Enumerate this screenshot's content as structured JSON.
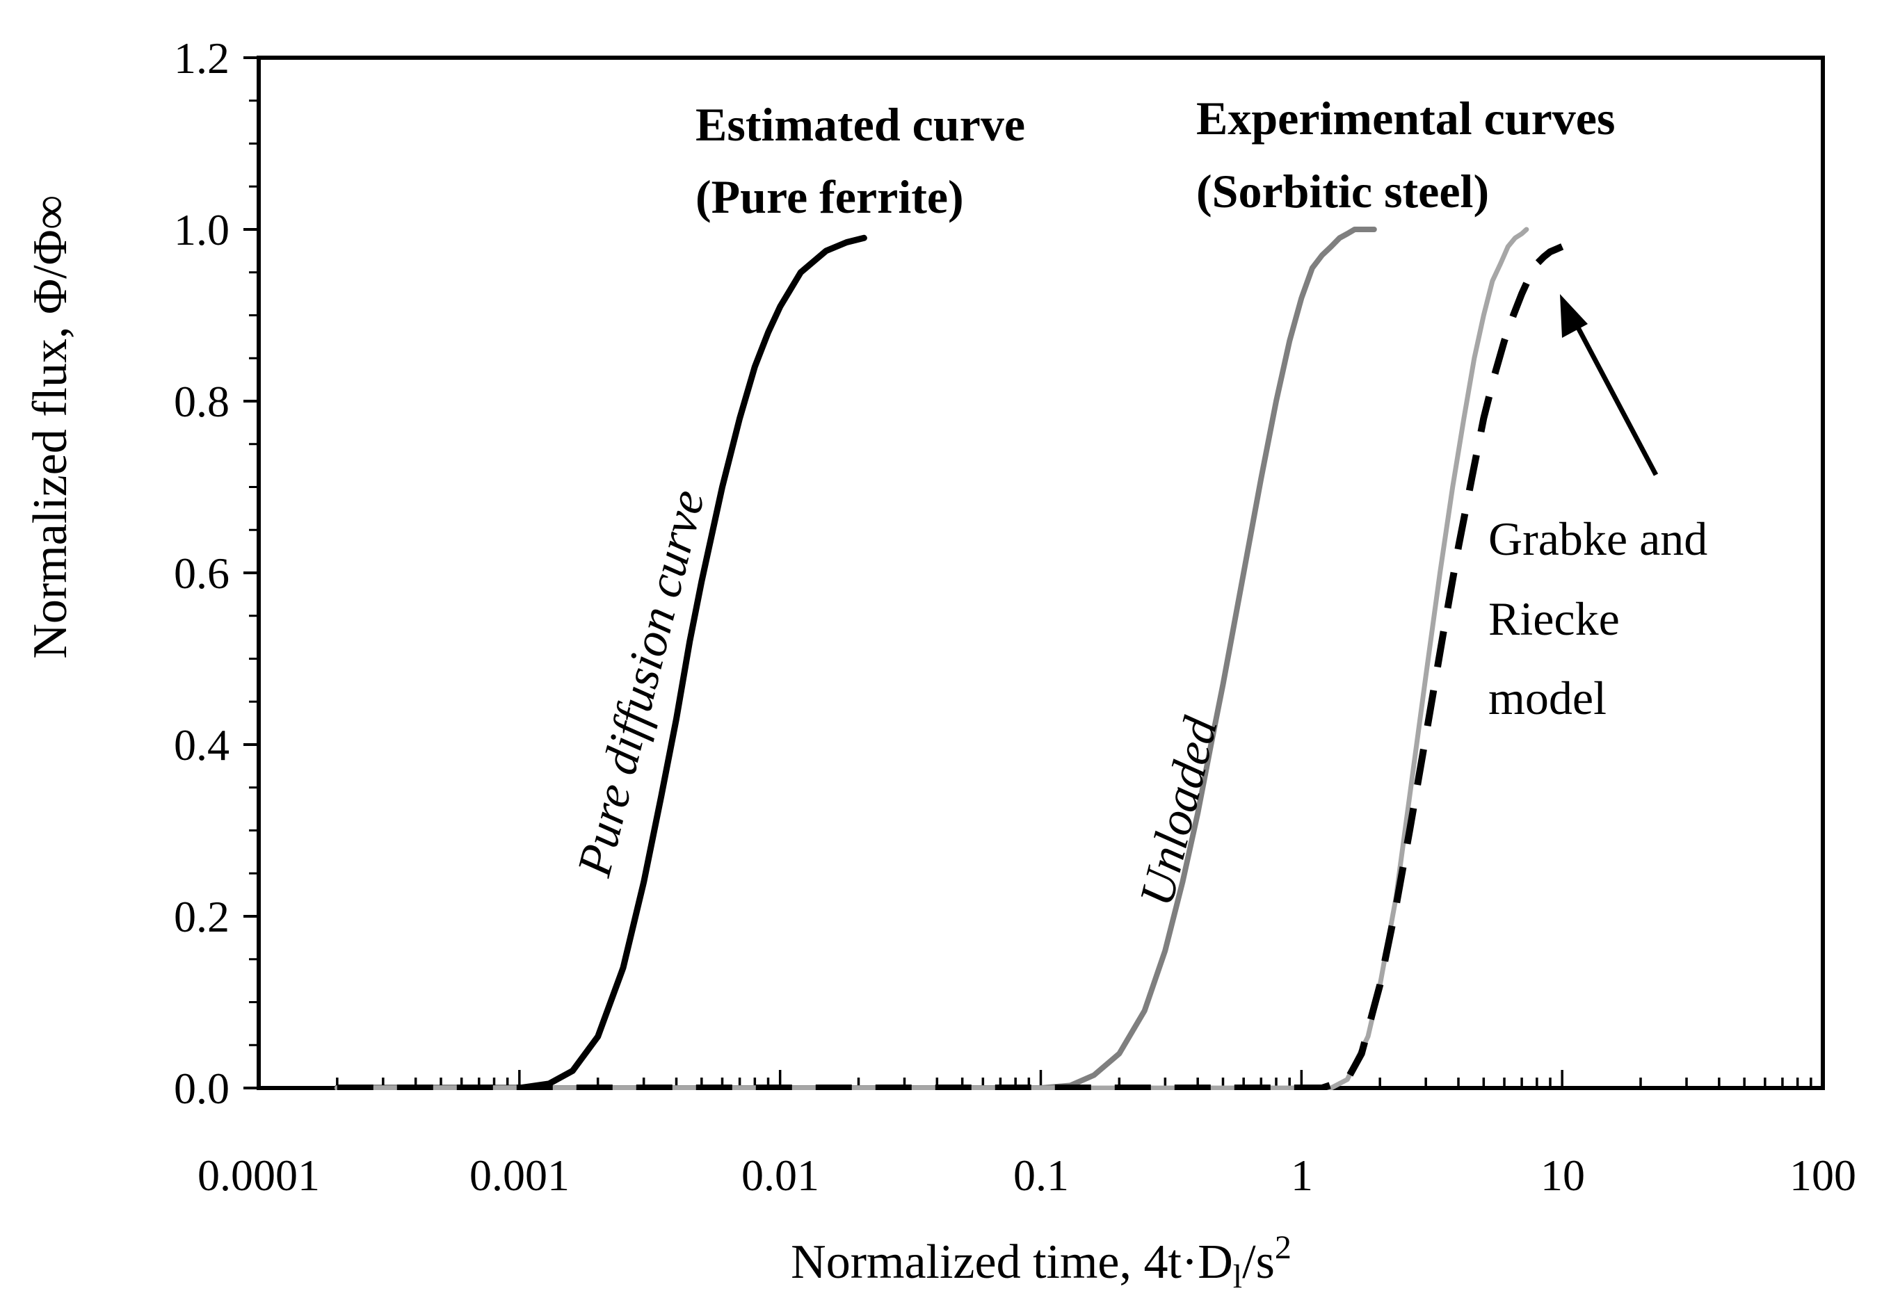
{
  "chart_data": {
    "type": "line",
    "xscale": "log",
    "xlim": [
      0.0001,
      100
    ],
    "ylim": [
      0,
      1.2
    ],
    "xticks": [
      "0.0001",
      "0.001",
      "0.01",
      "0.1",
      "1",
      "10",
      "100"
    ],
    "yticks": [
      "0.0",
      "0.2",
      "0.4",
      "0.6",
      "0.8",
      "1.0",
      "1.2"
    ],
    "xlabel": {
      "main": "Normalized time, 4t·D",
      "sub": "l",
      "tail": "/s",
      "sup": "2"
    },
    "ylabel": "Normalized flux, Φ/Φ∞",
    "series": [
      {
        "name": "Pure diffusion curve",
        "color": "#000000",
        "style": "solid",
        "x": [
          0.0002,
          0.001,
          0.0013,
          0.0016,
          0.002,
          0.0025,
          0.003,
          0.0035,
          0.004,
          0.0045,
          0.005,
          0.006,
          0.007,
          0.008,
          0.009,
          0.01,
          0.012,
          0.015,
          0.018,
          0.021
        ],
        "y": [
          0.0,
          0.0,
          0.005,
          0.02,
          0.06,
          0.14,
          0.24,
          0.34,
          0.43,
          0.52,
          0.59,
          0.7,
          0.78,
          0.84,
          0.88,
          0.91,
          0.95,
          0.975,
          0.985,
          0.99
        ]
      },
      {
        "name": "Unloaded",
        "color": "#7f7f7f",
        "style": "solid",
        "x": [
          0.0002,
          0.1,
          0.13,
          0.16,
          0.2,
          0.25,
          0.3,
          0.35,
          0.4,
          0.45,
          0.5,
          0.6,
          0.7,
          0.8,
          0.9,
          1.0,
          1.1,
          1.2,
          1.3,
          1.4,
          1.5,
          1.6,
          1.8,
          1.9
        ],
        "y": [
          0.0,
          0.0,
          0.003,
          0.015,
          0.04,
          0.09,
          0.16,
          0.24,
          0.32,
          0.4,
          0.47,
          0.6,
          0.71,
          0.8,
          0.87,
          0.92,
          0.955,
          0.97,
          0.98,
          0.99,
          0.995,
          1.0,
          1.0,
          1.0
        ]
      },
      {
        "name": "Sorbitic steel (experimental)",
        "color": "#a6a6a6",
        "style": "solid",
        "x": [
          0.0002,
          1.0,
          1.3,
          1.5,
          1.8,
          2.0,
          2.3,
          2.6,
          3.0,
          3.4,
          3.8,
          4.2,
          4.6,
          5.0,
          5.4,
          5.8,
          6.2,
          6.6,
          7.0,
          7.3
        ],
        "y": [
          0.0,
          0.0,
          0.0,
          0.01,
          0.06,
          0.12,
          0.22,
          0.34,
          0.48,
          0.6,
          0.7,
          0.78,
          0.85,
          0.9,
          0.94,
          0.96,
          0.98,
          0.99,
          0.995,
          1.0
        ]
      },
      {
        "name": "Grabke and Riecke model",
        "color": "#000000",
        "style": "dashed",
        "x": [
          0.0002,
          1.2,
          1.5,
          1.7,
          2.0,
          2.3,
          2.6,
          3.0,
          3.5,
          4.0,
          4.5,
          5.0,
          5.5,
          6.0,
          6.5,
          7.0,
          7.5,
          8.0,
          8.5,
          9.0,
          9.5,
          10.0
        ],
        "y": [
          0.0,
          0.0,
          0.01,
          0.04,
          0.12,
          0.21,
          0.3,
          0.41,
          0.53,
          0.63,
          0.71,
          0.78,
          0.83,
          0.87,
          0.9,
          0.925,
          0.945,
          0.96,
          0.968,
          0.974,
          0.977,
          0.98
        ]
      }
    ],
    "annotations": {
      "estimated_line1": "Estimated curve",
      "estimated_line2": "(Pure ferrite)",
      "experimental_line1": "Experimental curves",
      "experimental_line2": "(Sorbitic steel)",
      "pure_diffusion": "Pure diffusion curve",
      "unloaded": "Unloaded",
      "model_line1": "Grabke and",
      "model_line2": "Riecke",
      "model_line3": "model"
    }
  }
}
